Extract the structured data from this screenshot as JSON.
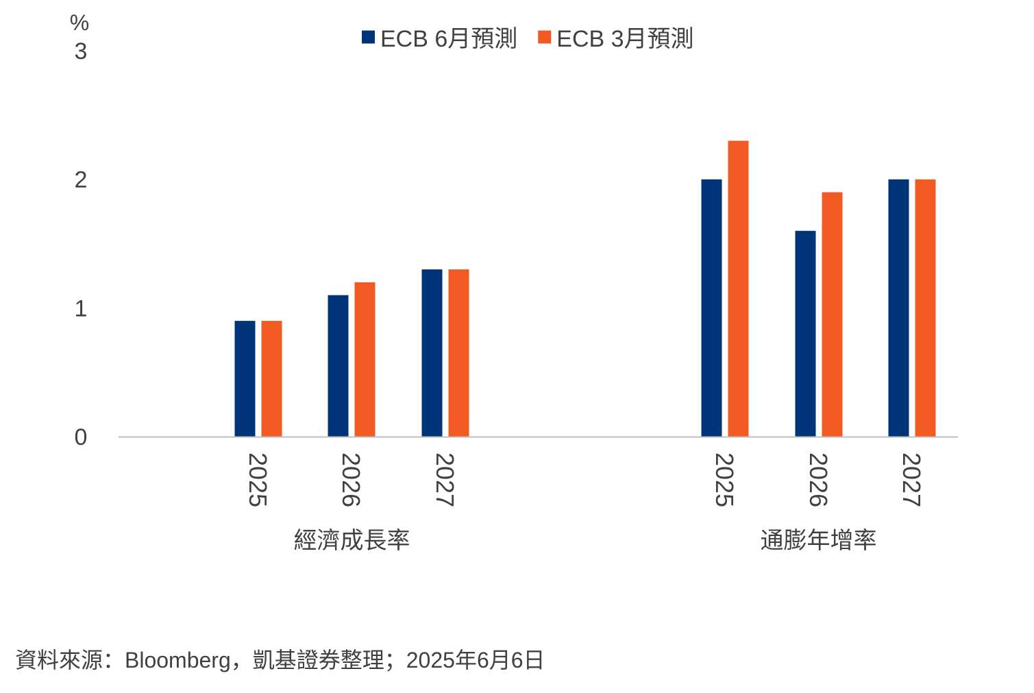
{
  "chart_data": {
    "type": "bar",
    "ylabel": "%",
    "ylim": [
      0,
      3
    ],
    "yticks": [
      0,
      1,
      2,
      3
    ],
    "grid": false,
    "legend_position": "top-center",
    "groups": [
      {
        "label": "經濟成長率",
        "categories": [
          "2025",
          "2026",
          "2027"
        ]
      },
      {
        "label": "通膨年增率",
        "categories": [
          "2025",
          "2026",
          "2027"
        ]
      }
    ],
    "series": [
      {
        "name": "ECB 6月預測",
        "color": "#003478",
        "values": [
          [
            0.9,
            1.1,
            1.3
          ],
          [
            2.0,
            1.6,
            2.0
          ]
        ]
      },
      {
        "name": "ECB 3月預測",
        "color": "#F15A22",
        "values": [
          [
            0.9,
            1.2,
            1.3
          ],
          [
            2.3,
            1.9,
            2.0
          ]
        ]
      }
    ]
  },
  "source_note": "資料來源：Bloomberg，凱基證券整理；2025年6月6日"
}
